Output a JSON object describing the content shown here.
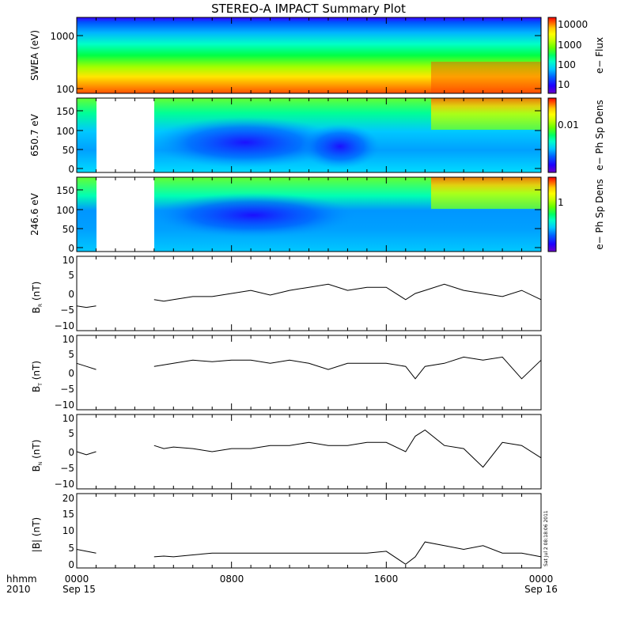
{
  "title": "STEREO-A IMPACT Summary Plot",
  "colors": {
    "colormap": [
      "#6a00c8",
      "#1e00ff",
      "#0064ff",
      "#00c8ff",
      "#00ffc8",
      "#00ff64",
      "#64ff00",
      "#c8ff00",
      "#ffff00",
      "#ffc800",
      "#ff6400",
      "#ff0000"
    ],
    "trace": "#000000",
    "gap": "#ffffff"
  },
  "time_axis": {
    "row_labels": [
      "hhmm",
      "2010"
    ],
    "ticks": [
      {
        "label": "0000",
        "sub": "Sep 15"
      },
      {
        "label": "0800",
        "sub": ""
      },
      {
        "label": "1600",
        "sub": ""
      },
      {
        "label": "0000",
        "sub": "Sep 16"
      }
    ],
    "data_gap_hours": [
      1.1,
      4.0
    ]
  },
  "stamp": "Sat Jul  2 08:18:06 2011",
  "chart_data": [
    {
      "type": "heatmap",
      "ylabel": "SWEA (eV)",
      "yscale": "log",
      "ylim": [
        100,
        2000
      ],
      "yticks": [
        "1000",
        "100"
      ],
      "colorbar": {
        "label": "e− Flux",
        "ticks": [
          "10000",
          "1000",
          "100",
          "10"
        ]
      }
    },
    {
      "type": "heatmap",
      "ylabel": "650.7 eV",
      "ylim": [
        0,
        180
      ],
      "yticks": [
        "150",
        "100",
        "50",
        "0"
      ],
      "colorbar": {
        "label": "e− Ph Sp Dens",
        "ticks": [
          "0.01"
        ]
      }
    },
    {
      "type": "heatmap",
      "ylabel": "246.6 eV",
      "ylim": [
        0,
        180
      ],
      "yticks": [
        "150",
        "100",
        "50",
        "0"
      ],
      "colorbar": {
        "label": "e− Ph Sp Dens",
        "ticks": [
          "1"
        ]
      }
    },
    {
      "type": "line",
      "ylabel_main": "B",
      "ylabel_sub": "R",
      "ylabel_unit": " (nT)",
      "ylim": [
        -12,
        12
      ],
      "yticks": [
        "10",
        "5",
        "0",
        "−5",
        "−10"
      ],
      "x": [
        0,
        0.5,
        1.0,
        4.0,
        4.5,
        5.0,
        6.0,
        7.0,
        8.0,
        9.0,
        10.0,
        11.0,
        12.0,
        13.0,
        14.0,
        15.0,
        16.0,
        17.0,
        17.5,
        18.0,
        19.0,
        20.0,
        21.0,
        22.0,
        23.0,
        24.0
      ],
      "y": [
        -4,
        -4.5,
        -4,
        -2,
        -2.5,
        -2,
        -1,
        -1,
        0,
        1,
        -0.5,
        1,
        2,
        3,
        1,
        2,
        2,
        -2,
        0,
        1,
        3,
        1,
        0,
        -1,
        1,
        -2
      ]
    },
    {
      "type": "line",
      "ylabel_main": "B",
      "ylabel_sub": "T",
      "ylabel_unit": " (nT)",
      "ylim": [
        -12,
        12
      ],
      "yticks": [
        "10",
        "5",
        "0",
        "−5",
        "−10"
      ],
      "x": [
        0,
        0.5,
        1.0,
        4.0,
        4.5,
        5.0,
        6.0,
        7.0,
        8.0,
        9.0,
        10.0,
        11.0,
        12.0,
        13.0,
        14.0,
        15.0,
        16.0,
        17.0,
        17.5,
        18.0,
        19.0,
        20.0,
        21.0,
        22.0,
        23.0,
        24.0
      ],
      "y": [
        3,
        2,
        1,
        2,
        2.5,
        3,
        4,
        3.5,
        4,
        4,
        3,
        4,
        3,
        1,
        3,
        3,
        3,
        2,
        -2,
        2,
        3,
        5,
        4,
        5,
        -2,
        4
      ]
    },
    {
      "type": "line",
      "ylabel_main": "B",
      "ylabel_sub": "N",
      "ylabel_unit": " (nT)",
      "ylim": [
        -12,
        12
      ],
      "yticks": [
        "10",
        "5",
        "0",
        "−5",
        "−10"
      ],
      "x": [
        0,
        0.5,
        1.0,
        4.0,
        4.5,
        5.0,
        6.0,
        7.0,
        8.0,
        9.0,
        10.0,
        11.0,
        12.0,
        13.0,
        14.0,
        15.0,
        16.0,
        17.0,
        17.5,
        18.0,
        19.0,
        20.0,
        21.0,
        22.0,
        23.0,
        24.0
      ],
      "y": [
        0,
        -1,
        0,
        2,
        1,
        1.5,
        1,
        0,
        1,
        1,
        2,
        2,
        3,
        2,
        2,
        3,
        3,
        0,
        5,
        7,
        2,
        1,
        -5,
        3,
        2,
        -2
      ]
    },
    {
      "type": "line",
      "ylabel_main": "|B|",
      "ylabel_sub": "",
      "ylabel_unit": " (nT)",
      "ylim": [
        0,
        20
      ],
      "yticks": [
        "20",
        "15",
        "10",
        "5",
        "0"
      ],
      "x": [
        0,
        0.5,
        1.0,
        4.0,
        4.5,
        5.0,
        6.0,
        7.0,
        8.0,
        9.0,
        10.0,
        11.0,
        12.0,
        13.0,
        14.0,
        15.0,
        16.0,
        17.0,
        17.5,
        18.0,
        19.0,
        20.0,
        21.0,
        22.0,
        23.0,
        24.0
      ],
      "y": [
        5,
        4.5,
        4,
        3,
        3.2,
        3,
        3.5,
        4,
        4,
        4,
        4,
        4,
        4,
        4,
        4,
        4,
        4.5,
        1,
        3,
        7,
        6,
        5,
        6,
        4,
        4,
        3
      ]
    }
  ]
}
